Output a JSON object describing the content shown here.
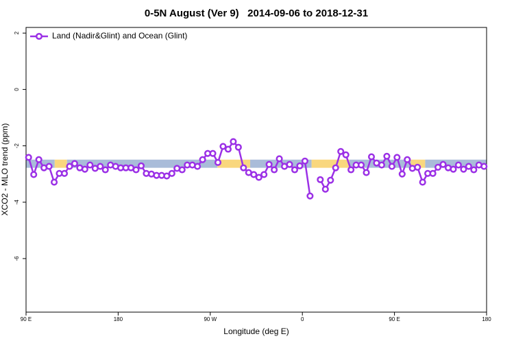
{
  "chart_data": {
    "type": "line",
    "title": "0-5N August (Ver 9)   2014-09-06 to 2018-12-31",
    "x_label": "Longitude (deg E)",
    "y_label": "XCO2 - MLO trend (ppm)",
    "xlim": [
      90,
      540
    ],
    "ylim": [
      -7.9,
      2.2
    ],
    "xticks": [
      {
        "value": 90,
        "label": "90 E"
      },
      180,
      {
        "value": 270,
        "label": "90 W"
      },
      {
        "value": 360,
        "label": "0"
      },
      {
        "value": 450,
        "label": "90 E"
      },
      {
        "value": 540,
        "label": "180"
      }
    ],
    "yticks": [
      -6,
      -4,
      -2,
      0,
      2
    ],
    "grid": false,
    "legend": "top-left",
    "band": {
      "low": -2.78,
      "high": -2.49,
      "segments": [
        {
          "from": 90,
          "to": 118,
          "color": "#a9bcd9"
        },
        {
          "from": 118,
          "to": 130,
          "color": "#f9d77e"
        },
        {
          "from": 130,
          "to": 277,
          "color": "#a9bcd9"
        },
        {
          "from": 277,
          "to": 309,
          "color": "#f9d77e"
        },
        {
          "from": 309,
          "to": 369,
          "color": "#a9bcd9"
        },
        {
          "from": 369,
          "to": 406,
          "color": "#f9d77e"
        },
        {
          "from": 406,
          "to": 466,
          "color": "#a9bcd9"
        },
        {
          "from": 466,
          "to": 480,
          "color": "#f9d77e"
        },
        {
          "from": 480,
          "to": 540,
          "color": "#a9bcd9"
        }
      ]
    },
    "x": [
      92.5,
      97.5,
      102.5,
      107.5,
      112.5,
      117.5,
      122.5,
      127.5,
      132.5,
      137.5,
      142.5,
      147.5,
      152.5,
      157.5,
      162.5,
      167.5,
      172.5,
      177.5,
      182.5,
      187.5,
      192.5,
      197.5,
      202.5,
      207.5,
      212.5,
      217.5,
      222.5,
      227.5,
      232.5,
      237.5,
      242.5,
      247.5,
      252.5,
      257.5,
      262.5,
      267.5,
      272.5,
      277.5,
      282.5,
      287.5,
      292.5,
      297.5,
      302.5,
      307.5,
      312.5,
      317.5,
      322.5,
      327.5,
      332.5,
      337.5,
      342.5,
      347.5,
      352.5,
      357.5,
      362.5,
      367.5,
      372.5,
      377.5,
      382.5,
      387.5,
      392.5,
      397.5,
      402.5,
      407.5,
      412.5,
      417.5,
      422.5,
      427.5,
      432.5,
      437.5,
      442.5,
      447.5,
      452.5,
      457.5,
      462.5,
      467.5,
      472.5,
      477.5,
      482.5,
      487.5,
      492.5,
      497.5,
      502.5,
      507.5,
      512.5,
      517.5,
      522.5,
      527.5,
      532.5,
      537.5
    ],
    "series": [
      {
        "name": "Land (Nadir&Glint) and Ocean (Glint)",
        "color": "#9b30e6",
        "values": [
          -2.41,
          -3.02,
          -2.49,
          -2.78,
          -2.73,
          -3.29,
          -2.98,
          -2.98,
          -2.73,
          -2.63,
          -2.78,
          -2.83,
          -2.68,
          -2.8,
          -2.73,
          -2.85,
          -2.68,
          -2.73,
          -2.78,
          -2.78,
          -2.78,
          -2.85,
          -2.71,
          -2.98,
          -3.0,
          -3.05,
          -3.05,
          -3.07,
          -2.98,
          -2.8,
          -2.85,
          -2.68,
          -2.68,
          -2.73,
          -2.49,
          -2.27,
          -2.27,
          -2.59,
          -2.02,
          -2.12,
          -1.85,
          -2.05,
          -2.78,
          -2.95,
          -3.02,
          -3.12,
          -3.02,
          -2.66,
          -2.85,
          -2.46,
          -2.73,
          -2.66,
          -2.85,
          -2.71,
          -2.54,
          -3.78,
          null,
          -3.2,
          -3.54,
          -3.22,
          -2.78,
          -2.2,
          -2.32,
          -2.85,
          -2.68,
          -2.68,
          -2.95,
          -2.39,
          -2.61,
          -2.68,
          -2.37,
          -2.73,
          -2.41,
          -3.0,
          -2.49,
          -2.8,
          -2.76,
          -3.29,
          -2.98,
          -2.98,
          -2.76,
          -2.66,
          -2.78,
          -2.83,
          -2.68,
          -2.83,
          -2.73,
          -2.85,
          -2.68,
          -2.73
        ]
      }
    ]
  }
}
